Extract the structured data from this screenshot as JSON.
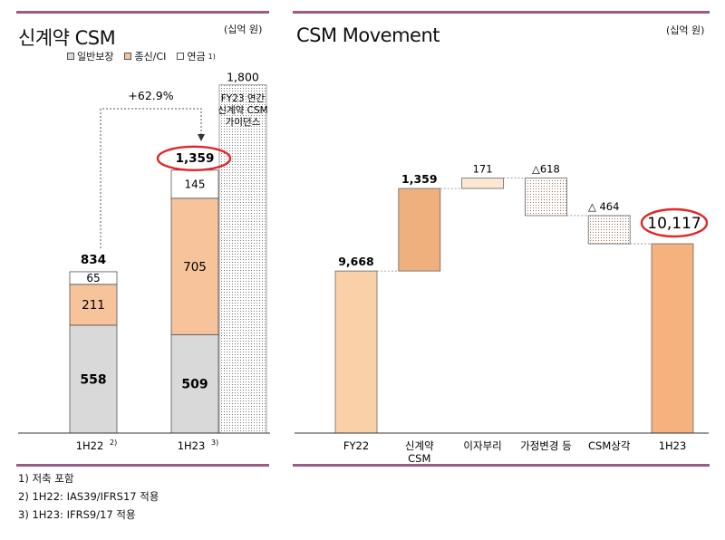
{
  "colors": {
    "frame_line": "#9a5b86",
    "general": "#d9d9d9",
    "health": "#f6c39a",
    "annuity": "#ffffff",
    "guidance_dots": "#777777",
    "wf_base": "#f9d0a8",
    "wf_csm": "#f0b07e",
    "wf_interest": "#fde6d2",
    "wf_end": "#f5b17e",
    "highlight_circle": "#e0262a"
  },
  "left_panel": {
    "title": "신계약 CSM",
    "unit": "(십억 원)",
    "legend": [
      {
        "key": "general",
        "label": "일반보장",
        "icon": "square-icon"
      },
      {
        "key": "health",
        "label": "종신/CI",
        "icon": "square-icon"
      },
      {
        "key": "annuity",
        "label": "연금",
        "sup": "1)",
        "icon": "square-icon"
      }
    ],
    "growth_label": "+62.9%",
    "guidance_label": [
      "FY23 연간",
      "신계약 CSM",
      "가이던스"
    ],
    "footnotes": [
      "1) 저축 포함",
      "2) 1H22: IAS39/IFRS17 적용",
      "3) 1H23: IFRS9/17 적용"
    ]
  },
  "right_panel": {
    "title": "CSM Movement",
    "unit": "(십억 원)"
  },
  "chart_data": [
    {
      "type": "bar",
      "stacked": true,
      "title": "신계약 CSM",
      "categories": [
        "1H22",
        "1H23"
      ],
      "category_sups": [
        "2)",
        "3)"
      ],
      "series": [
        {
          "name": "일반보장",
          "values": [
            558,
            509
          ]
        },
        {
          "name": "종신/CI",
          "values": [
            211,
            705
          ]
        },
        {
          "name": "연금",
          "values": [
            65,
            145
          ]
        }
      ],
      "totals": [
        834,
        1359
      ],
      "totals_labels": [
        "834",
        "1,359"
      ],
      "segment_labels": [
        [
          "558",
          "211",
          "65"
        ],
        [
          "509",
          "705",
          "145"
        ]
      ],
      "guidance": {
        "value": 1800,
        "label": "1,800"
      },
      "growth": "+62.9%",
      "ylim": [
        0,
        1850
      ]
    },
    {
      "type": "waterfall",
      "title": "CSM Movement",
      "categories": [
        "FY22",
        "신계약\nCSM",
        "이자부리",
        "가정변경 등",
        "CSM상각",
        "1H23"
      ],
      "values": [
        9668,
        1359,
        171,
        -618,
        -464,
        10117
      ],
      "labels": [
        "9,668",
        "1,359",
        "171",
        "△618",
        "△ 464",
        "10,117"
      ],
      "kinds": [
        "total",
        "delta",
        "delta",
        "delta",
        "delta",
        "total"
      ],
      "ylim": [
        7000,
        10500
      ]
    }
  ]
}
